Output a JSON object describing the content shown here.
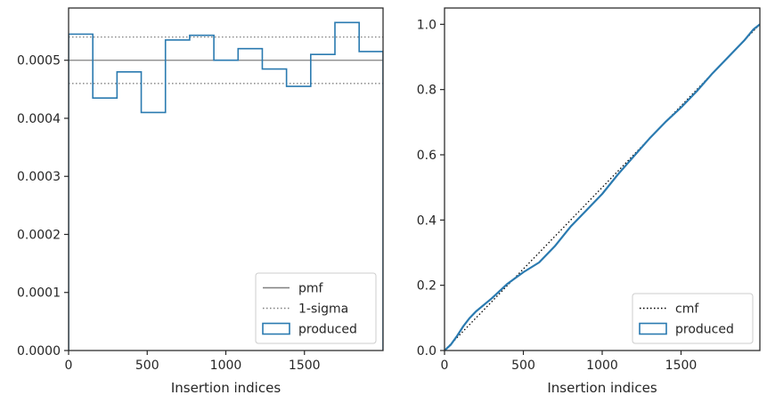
{
  "chart_data": [
    {
      "type": "histogram-step",
      "xlabel": "Insertion indices",
      "ylabel": "",
      "xlim": [
        0,
        2000
      ],
      "ylim": [
        0,
        0.00059
      ],
      "x_ticks": [
        0,
        500,
        1000,
        1500
      ],
      "y_ticks": [
        0.0,
        0.0001,
        0.0002,
        0.0003,
        0.0004,
        0.0005
      ],
      "x_tick_labels": [
        "0",
        "500",
        "1000",
        "1500"
      ],
      "y_tick_labels": [
        "0.0000",
        "0.0001",
        "0.0002",
        "0.0003",
        "0.0004",
        "0.0005"
      ],
      "bin_edges": [
        0,
        154,
        308,
        462,
        616,
        770,
        924,
        1078,
        1232,
        1386,
        1540,
        1694,
        1848,
        2000
      ],
      "bin_values": [
        0.000545,
        0.000435,
        0.00048,
        0.00041,
        0.000535,
        0.000543,
        0.0005,
        0.00052,
        0.000485,
        0.000455,
        0.00051,
        0.000565,
        0.000515
      ],
      "pmf": 0.0005,
      "sigma_bounds": [
        0.00046,
        0.00054
      ],
      "grid": false,
      "legend_position": "lower right",
      "legend": [
        {
          "label": "pmf",
          "style": "solid-line"
        },
        {
          "label": "1-sigma",
          "style": "dotted-line"
        },
        {
          "label": "produced",
          "style": "step-patch"
        }
      ],
      "colors": {
        "produced": "#2a7ab0",
        "pmf": "#808080",
        "sigma": "#808080"
      }
    },
    {
      "type": "line",
      "xlabel": "Insertion indices",
      "ylabel": "",
      "xlim": [
        0,
        2000
      ],
      "ylim": [
        0,
        1.05
      ],
      "x_ticks": [
        0,
        500,
        1000,
        1500
      ],
      "y_ticks": [
        0.0,
        0.2,
        0.4,
        0.6,
        0.8,
        1.0
      ],
      "x_tick_labels": [
        "0",
        "500",
        "1000",
        "1500"
      ],
      "y_tick_labels": [
        "0.0",
        "0.2",
        "0.4",
        "0.6",
        "0.8",
        "1.0"
      ],
      "series": [
        {
          "name": "cmf",
          "style": "dotted",
          "x": [
            0,
            2000
          ],
          "y": [
            0,
            1.0
          ]
        },
        {
          "name": "produced",
          "style": "solid",
          "x": [
            0,
            40,
            80,
            120,
            160,
            200,
            300,
            400,
            500,
            600,
            700,
            800,
            900,
            1000,
            1100,
            1200,
            1300,
            1400,
            1500,
            1600,
            1700,
            1800,
            1900,
            1960,
            2000
          ],
          "y": [
            0,
            0.018,
            0.045,
            0.075,
            0.1,
            0.12,
            0.16,
            0.205,
            0.24,
            0.27,
            0.32,
            0.38,
            0.43,
            0.48,
            0.54,
            0.595,
            0.65,
            0.7,
            0.745,
            0.795,
            0.85,
            0.9,
            0.95,
            0.985,
            1.0
          ]
        }
      ],
      "grid": false,
      "legend_position": "lower right",
      "legend": [
        {
          "label": "cmf",
          "style": "dotted-line"
        },
        {
          "label": "produced",
          "style": "step-patch"
        }
      ],
      "colors": {
        "produced": "#2a7ab0",
        "cmf": "#000000"
      }
    }
  ]
}
